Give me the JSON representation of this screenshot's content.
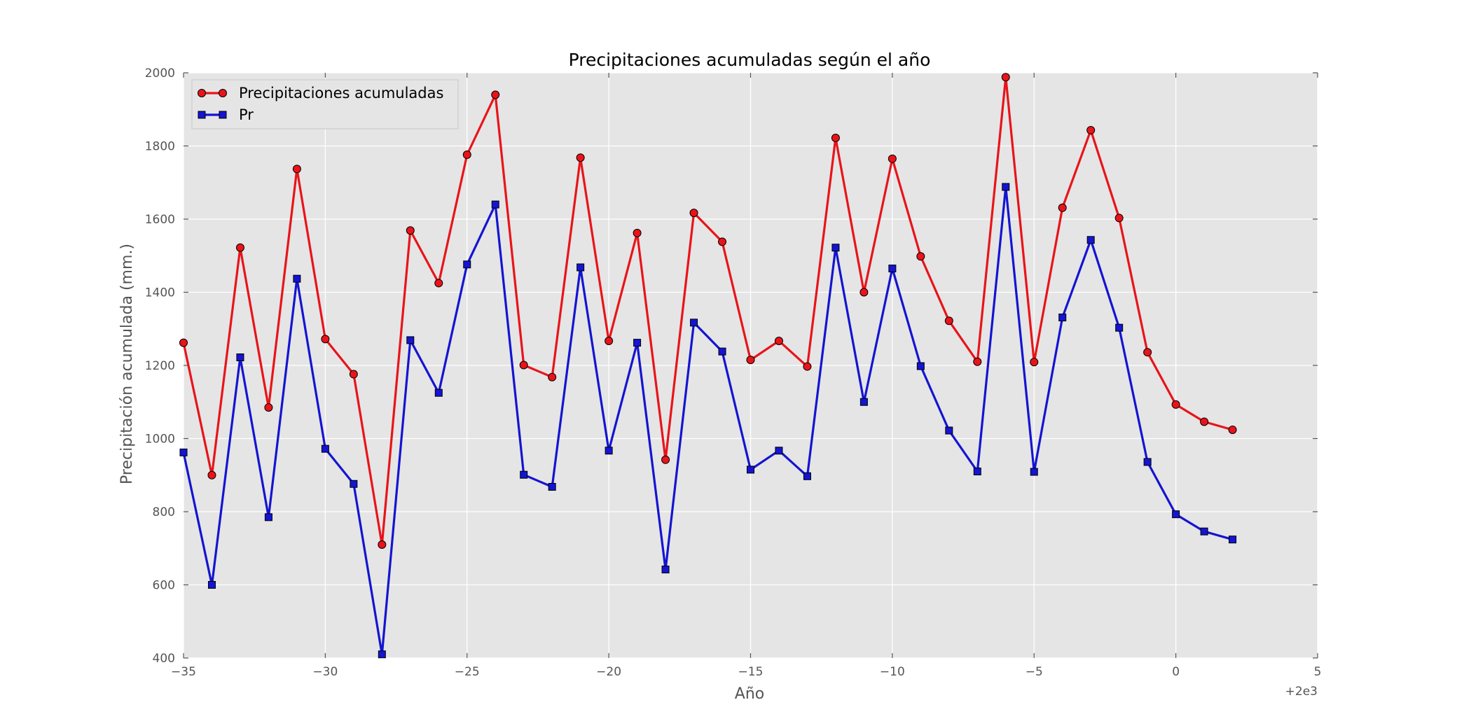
{
  "chart_data": {
    "type": "line",
    "title": "Precipitaciones acumuladas según el año",
    "xlabel": "Año",
    "ylabel": "Precipitación acumulada (mm.)",
    "x_offset_label": "+2e3",
    "xlim": [
      -35,
      5
    ],
    "ylim": [
      400,
      2000
    ],
    "x_ticks": [
      -35,
      -30,
      -25,
      -20,
      -15,
      -10,
      -5,
      0,
      5
    ],
    "x_tick_labels": [
      "−35",
      "−30",
      "−25",
      "−20",
      "−15",
      "−10",
      "−5",
      "0",
      "5"
    ],
    "y_ticks": [
      400,
      600,
      800,
      1000,
      1200,
      1400,
      1600,
      1800,
      2000
    ],
    "y_tick_labels": [
      "400",
      "600",
      "800",
      "1000",
      "1200",
      "1400",
      "1600",
      "1800",
      "2000"
    ],
    "grid": true,
    "legend_position": "top-left",
    "x": [
      -35,
      -34,
      -33,
      -32,
      -31,
      -30,
      -29,
      -28,
      -27,
      -26,
      -25,
      -24,
      -23,
      -22,
      -21,
      -20,
      -19,
      -18,
      -17,
      -16,
      -15,
      -14,
      -13,
      -12,
      -11,
      -10,
      -9,
      -8,
      -7,
      -6,
      -5,
      -4,
      -3,
      -2,
      -1,
      0,
      1,
      2
    ],
    "series": [
      {
        "name": "Precipitaciones acumuladas",
        "color": "#e8141a",
        "marker": "circle",
        "values": [
          1262,
          900,
          1522,
          1085,
          1737,
          1272,
          1176,
          710,
          1569,
          1425,
          1776,
          1940,
          1201,
          1168,
          1768,
          1267,
          1562,
          942,
          1617,
          1538,
          1215,
          1267,
          1197,
          1822,
          1400,
          1765,
          1498,
          1322,
          1210,
          1988,
          1209,
          1631,
          1843,
          1603,
          1236,
          1093,
          1046,
          1024
        ]
      },
      {
        "name": "Pr",
        "color": "#1414d2",
        "marker": "square",
        "values": [
          962,
          600,
          1222,
          785,
          1437,
          972,
          876,
          410,
          1269,
          1125,
          1476,
          1640,
          901,
          868,
          1468,
          967,
          1262,
          642,
          1317,
          1238,
          915,
          967,
          897,
          1522,
          1100,
          1465,
          1198,
          1022,
          910,
          1688,
          909,
          1331,
          1543,
          1303,
          936,
          793,
          746,
          724
        ]
      }
    ]
  }
}
